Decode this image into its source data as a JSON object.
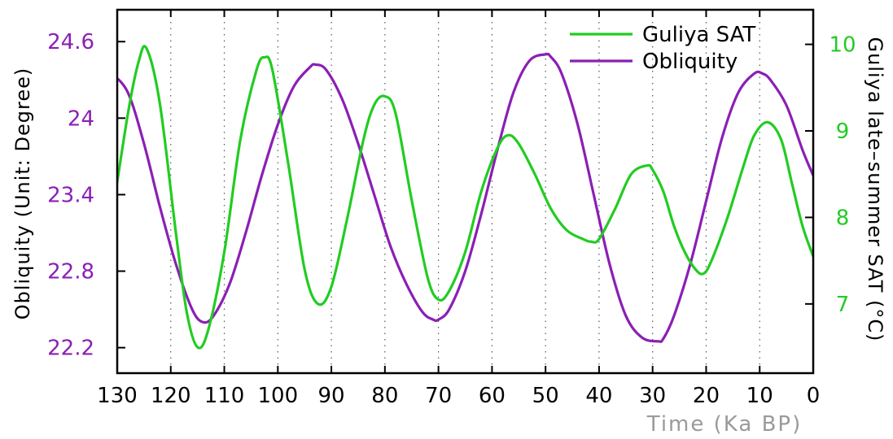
{
  "chart_data": {
    "type": "line",
    "xlabel": "Time (Ka BP)",
    "ylabel_left": "Obliquity (Unit: Degree)",
    "ylabel_right": "Guliya late–summer SAT (°C)",
    "x_range": [
      130,
      0
    ],
    "x_reversed": true,
    "ylim_left": [
      22.0,
      24.85
    ],
    "ylim_right": [
      6.2,
      10.4
    ],
    "x_ticks": [
      130,
      120,
      110,
      100,
      90,
      80,
      70,
      60,
      50,
      40,
      30,
      20,
      10,
      0
    ],
    "x_tick_labels": [
      "130",
      "120",
      "110",
      "100",
      "90",
      "80",
      "70",
      "60",
      "50",
      "40",
      "30",
      "20",
      "10",
      "0"
    ],
    "y_left_ticks": [
      22.2,
      22.8,
      23.4,
      24.0,
      24.6
    ],
    "y_left_tick_labels": [
      "22.2",
      "22.8",
      "23.4",
      "24",
      "24.6"
    ],
    "y_right_ticks": [
      7,
      8,
      9,
      10
    ],
    "y_right_tick_labels": [
      "7",
      "8",
      "9",
      "10"
    ],
    "vertical_dotted_grid": true,
    "legend_position": "top-right",
    "series": [
      {
        "name": "Guliya SAT",
        "axis": "right",
        "color": "#22cc22",
        "x": [
          131,
          128,
          126,
          124.5,
          122,
          119,
          117,
          115,
          113,
          110,
          107,
          104,
          102.5,
          101,
          98,
          95,
          92.5,
          90,
          87,
          84,
          82,
          80,
          78,
          75,
          72,
          70,
          68,
          65,
          62,
          59,
          57,
          55,
          52,
          49,
          46,
          43,
          41.5,
          40,
          37,
          34,
          31,
          30,
          28,
          26,
          24,
          22,
          20.5,
          19,
          16,
          13,
          11,
          8.5,
          6,
          4,
          2,
          0
        ],
        "y": [
          8.0,
          9.2,
          9.8,
          9.95,
          9.3,
          7.8,
          6.9,
          6.5,
          6.7,
          7.6,
          8.9,
          9.7,
          9.85,
          9.7,
          8.6,
          7.4,
          7.0,
          7.2,
          8.0,
          8.9,
          9.3,
          9.4,
          9.2,
          8.2,
          7.3,
          7.05,
          7.15,
          7.6,
          8.3,
          8.8,
          8.95,
          8.85,
          8.5,
          8.1,
          7.85,
          7.75,
          7.72,
          7.75,
          8.1,
          8.5,
          8.6,
          8.55,
          8.3,
          7.9,
          7.6,
          7.4,
          7.35,
          7.5,
          8.0,
          8.6,
          8.95,
          9.1,
          8.9,
          8.4,
          7.9,
          7.55
        ]
      },
      {
        "name": "Obliquity",
        "axis": "left",
        "color": "#8b1fb5",
        "x": [
          131,
          128,
          125,
          122,
          119,
          116,
          114,
          112,
          109,
          106,
          103,
          100,
          97,
          94,
          93,
          91,
          88,
          85,
          82,
          79,
          76,
          73,
          71,
          70,
          68,
          65,
          62,
          59,
          56,
          53,
          50,
          49,
          47,
          44,
          41,
          38,
          35,
          32,
          29,
          28,
          26,
          23,
          20,
          17,
          14,
          11,
          9.5,
          8,
          5,
          2,
          0
        ],
        "y": [
          24.35,
          24.2,
          23.8,
          23.3,
          22.85,
          22.5,
          22.4,
          22.45,
          22.7,
          23.1,
          23.55,
          23.95,
          24.25,
          24.4,
          24.42,
          24.38,
          24.15,
          23.8,
          23.4,
          23.0,
          22.7,
          22.48,
          22.42,
          22.42,
          22.5,
          22.8,
          23.25,
          23.75,
          24.2,
          24.45,
          24.5,
          24.48,
          24.35,
          23.95,
          23.4,
          22.85,
          22.45,
          22.28,
          22.25,
          22.27,
          22.45,
          22.85,
          23.35,
          23.85,
          24.2,
          24.35,
          24.35,
          24.3,
          24.1,
          23.75,
          23.55
        ]
      }
    ]
  }
}
